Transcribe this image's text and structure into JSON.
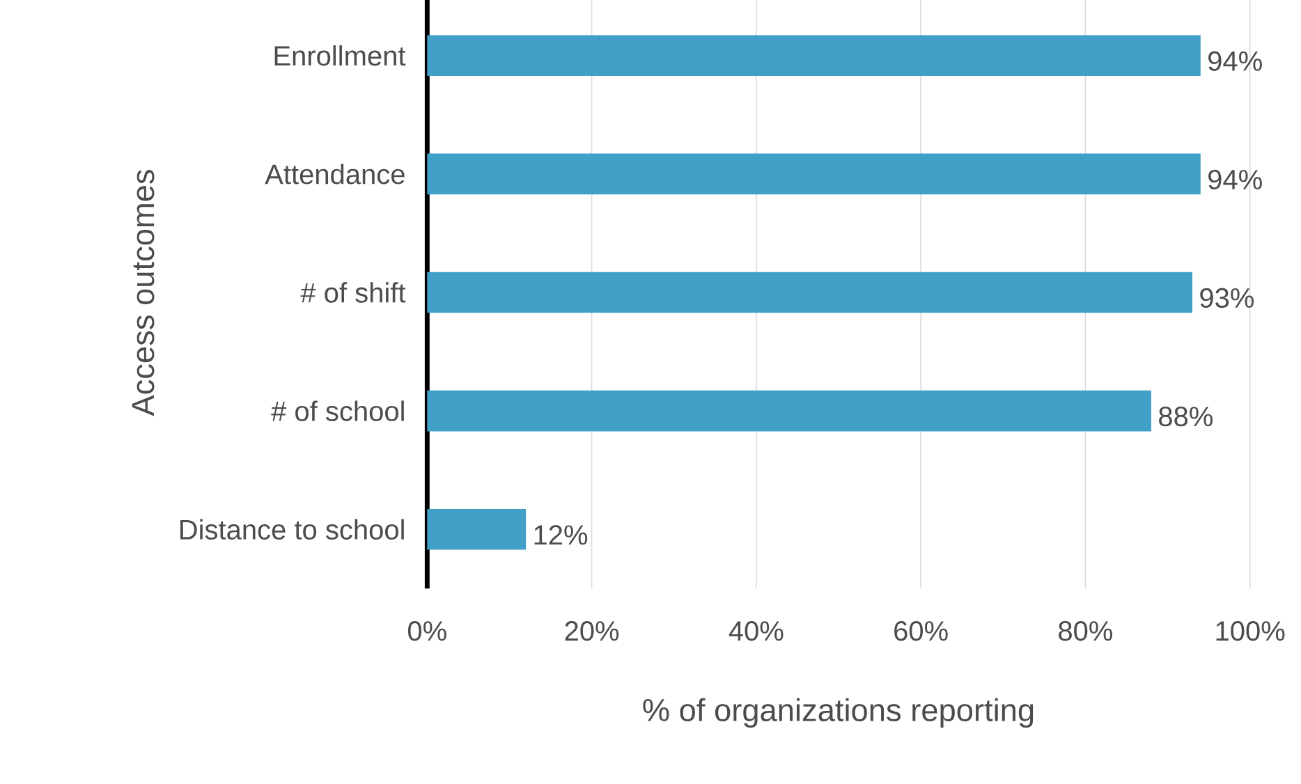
{
  "chart_data": {
    "type": "bar",
    "orientation": "horizontal",
    "xlabel": "% of organizations reporting",
    "ylabel": "Access outcomes",
    "categories": [
      "Enrollment",
      "Attendance",
      "# of shift",
      "# of school",
      "Distance to school"
    ],
    "values": [
      94,
      94,
      93,
      88,
      12
    ],
    "value_labels": [
      "94%",
      "94%",
      "93%",
      "88%",
      "12%"
    ],
    "color": "#41a0c8",
    "xlim": [
      0,
      100
    ],
    "xticks": [
      {
        "value": 0,
        "label": "0%"
      },
      {
        "value": 20,
        "label": "20%"
      },
      {
        "value": 40,
        "label": "40%"
      },
      {
        "value": 60,
        "label": "60%"
      },
      {
        "value": 80,
        "label": "80%"
      },
      {
        "value": 100,
        "label": "100%"
      }
    ],
    "grid": "x"
  }
}
